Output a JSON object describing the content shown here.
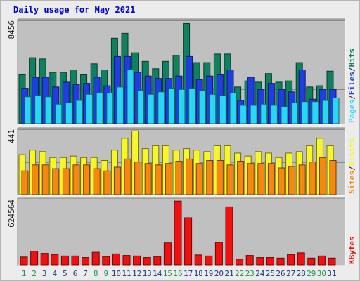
{
  "title": "Daily usage for May 2021",
  "colors": {
    "hits": "#0f8060",
    "files": "#1f3ee0",
    "pages": "#2ad6f4",
    "visits": "#f6f628",
    "sites": "#f48810",
    "kbytes": "#f01010",
    "weekday_label": "#1a3a7a",
    "weekend_label": "#209050",
    "panel_bg": "#c0c0c0"
  },
  "panels": {
    "top": {
      "max_label": "8456",
      "legend": [
        "Hits",
        "/",
        "Files",
        "/",
        "Pages"
      ]
    },
    "middle": {
      "max_label": "441",
      "legend": [
        "Visits",
        "/",
        "Sites"
      ]
    },
    "bottom": {
      "max_label": "624564",
      "legend": [
        "KBytes"
      ]
    }
  },
  "chart_data": [
    {
      "type": "bar",
      "x": [
        1,
        2,
        3,
        4,
        5,
        6,
        7,
        8,
        9,
        10,
        11,
        12,
        13,
        14,
        15,
        16,
        17,
        18,
        19,
        20,
        21,
        22,
        23,
        24,
        25,
        26,
        27,
        28,
        29,
        30,
        31
      ],
      "weekend_days": [
        1,
        2,
        8,
        9,
        15,
        16,
        22,
        23,
        29,
        30
      ],
      "ylim": [
        0,
        8456
      ],
      "series": [
        {
          "name": "Hits",
          "values": [
            4000,
            5400,
            5300,
            4200,
            4200,
            4400,
            4000,
            4900,
            4400,
            7000,
            7400,
            5800,
            5100,
            4500,
            5100,
            5600,
            8200,
            5000,
            5000,
            5700,
            5700,
            3000,
            3500,
            3400,
            4100,
            3400,
            3500,
            5000,
            3000,
            3100,
            4300
          ]
        },
        {
          "name": "Files",
          "values": [
            2900,
            3800,
            3800,
            3000,
            3400,
            3200,
            3300,
            3800,
            3100,
            5500,
            5500,
            4200,
            3900,
            3700,
            3700,
            3900,
            5500,
            3600,
            3900,
            4000,
            4400,
            1900,
            3800,
            2800,
            3300,
            2800,
            2600,
            4400,
            2000,
            2800,
            2800
          ]
        },
        {
          "name": "Pages",
          "values": [
            2200,
            2300,
            2200,
            1600,
            1700,
            1900,
            2400,
            2500,
            2500,
            3000,
            4400,
            2700,
            2400,
            2600,
            2900,
            2800,
            2900,
            2700,
            2400,
            2300,
            2500,
            1500,
            1500,
            1600,
            1500,
            1400,
            1700,
            1800,
            1800,
            1900,
            2100
          ]
        }
      ]
    },
    {
      "type": "bar",
      "x": [
        1,
        2,
        3,
        4,
        5,
        6,
        7,
        8,
        9,
        10,
        11,
        12,
        13,
        14,
        15,
        16,
        17,
        18,
        19,
        20,
        21,
        22,
        23,
        24,
        25,
        26,
        27,
        28,
        29,
        30,
        31
      ],
      "ylim": [
        0,
        441
      ],
      "series": [
        {
          "name": "Visits",
          "values": [
            270,
            300,
            290,
            250,
            250,
            260,
            250,
            250,
            230,
            300,
            380,
            430,
            310,
            330,
            330,
            300,
            310,
            300,
            290,
            330,
            330,
            280,
            260,
            290,
            280,
            250,
            280,
            290,
            330,
            380,
            330
          ]
        },
        {
          "name": "Sites",
          "values": [
            160,
            200,
            200,
            175,
            175,
            200,
            200,
            175,
            160,
            185,
            240,
            220,
            210,
            200,
            210,
            225,
            240,
            210,
            230,
            230,
            200,
            225,
            210,
            210,
            210,
            180,
            190,
            200,
            220,
            250,
            230
          ]
        }
      ]
    },
    {
      "type": "bar",
      "x": [
        1,
        2,
        3,
        4,
        5,
        6,
        7,
        8,
        9,
        10,
        11,
        12,
        13,
        14,
        15,
        16,
        17,
        18,
        19,
        20,
        21,
        22,
        23,
        24,
        25,
        26,
        27,
        28,
        29,
        30,
        31
      ],
      "ylim": [
        0,
        624564
      ],
      "series": [
        {
          "name": "KBytes",
          "values": [
            75000,
            130000,
            110000,
            100000,
            85000,
            85000,
            70000,
            120000,
            80000,
            105000,
            90000,
            85000,
            70000,
            80000,
            210000,
            610000,
            450000,
            95000,
            85000,
            215000,
            555000,
            55000,
            90000,
            70000,
            70000,
            65000,
            100000,
            115000,
            65000,
            85000,
            65000
          ]
        }
      ]
    }
  ]
}
